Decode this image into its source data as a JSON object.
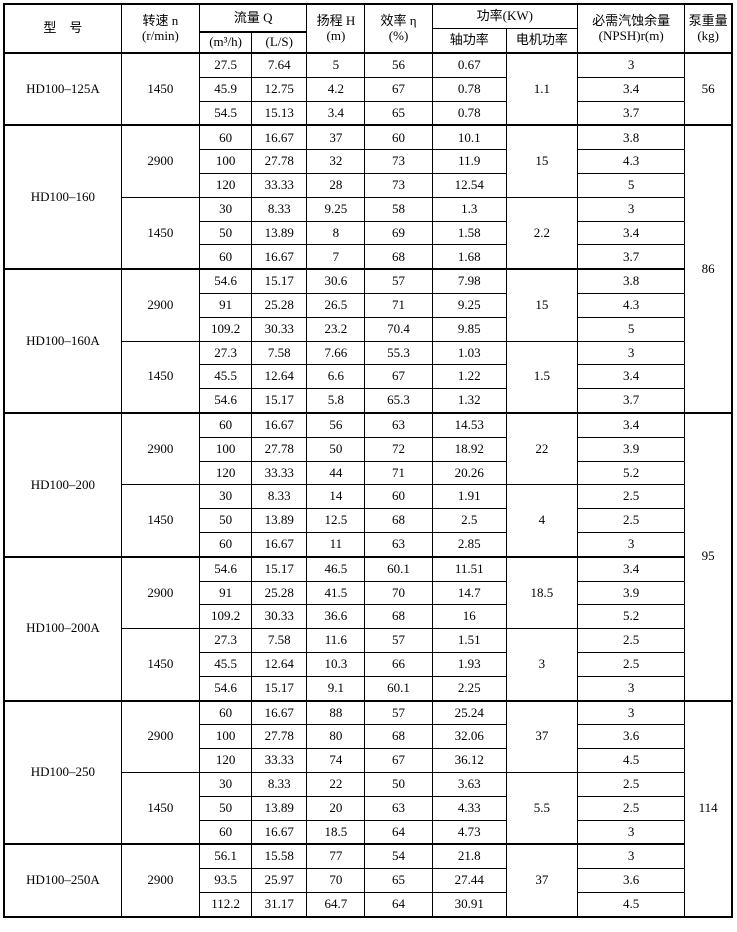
{
  "table": {
    "columns": {
      "model": "型　号",
      "speed_l1": "转速 n",
      "speed_l2": "(r/min)",
      "flow": "流量 Q",
      "flow_m3h": "(m³/h)",
      "flow_ls": "(L/S)",
      "head_l1": "扬程 H",
      "head_l2": "(m)",
      "eff_l1": "效率 η",
      "eff_l2": "(%)",
      "power": "功率(KW)",
      "shaft": "轴功率",
      "motor": "电机功率",
      "npsh_l1": "必需汽蚀余量",
      "npsh_l2": "(NPSH)r(m)",
      "weight_l1": "泵重量",
      "weight_l2": "(kg)"
    },
    "groups": [
      {
        "model": "HD100–125A",
        "blocks": [
          {
            "speed": "1450",
            "motor_power": "1.1",
            "rows": [
              [
                "27.5",
                "7.64",
                "5",
                "56",
                "0.67",
                "3"
              ],
              [
                "45.9",
                "12.75",
                "4.2",
                "67",
                "0.78",
                "3.4"
              ],
              [
                "54.5",
                "15.13",
                "3.4",
                "65",
                "0.78",
                "3.7"
              ]
            ]
          }
        ]
      },
      {
        "model": "HD100–160",
        "blocks": [
          {
            "speed": "2900",
            "motor_power": "15",
            "rows": [
              [
                "60",
                "16.67",
                "37",
                "60",
                "10.1",
                "3.8"
              ],
              [
                "100",
                "27.78",
                "32",
                "73",
                "11.9",
                "4.3"
              ],
              [
                "120",
                "33.33",
                "28",
                "73",
                "12.54",
                "5"
              ]
            ]
          },
          {
            "speed": "1450",
            "motor_power": "2.2",
            "rows": [
              [
                "30",
                "8.33",
                "9.25",
                "58",
                "1.3",
                "3"
              ],
              [
                "50",
                "13.89",
                "8",
                "69",
                "1.58",
                "3.4"
              ],
              [
                "60",
                "16.67",
                "7",
                "68",
                "1.68",
                "3.7"
              ]
            ]
          }
        ]
      },
      {
        "model": "HD100–160A",
        "blocks": [
          {
            "speed": "2900",
            "motor_power": "15",
            "rows": [
              [
                "54.6",
                "15.17",
                "30.6",
                "57",
                "7.98",
                "3.8"
              ],
              [
                "91",
                "25.28",
                "26.5",
                "71",
                "9.25",
                "4.3"
              ],
              [
                "109.2",
                "30.33",
                "23.2",
                "70.4",
                "9.85",
                "5"
              ]
            ]
          },
          {
            "speed": "1450",
            "motor_power": "1.5",
            "rows": [
              [
                "27.3",
                "7.58",
                "7.66",
                "55.3",
                "1.03",
                "3"
              ],
              [
                "45.5",
                "12.64",
                "6.6",
                "67",
                "1.22",
                "3.4"
              ],
              [
                "54.6",
                "15.17",
                "5.8",
                "65.3",
                "1.32",
                "3.7"
              ]
            ]
          }
        ]
      },
      {
        "model": "HD100–200",
        "blocks": [
          {
            "speed": "2900",
            "motor_power": "22",
            "rows": [
              [
                "60",
                "16.67",
                "56",
                "63",
                "14.53",
                "3.4"
              ],
              [
                "100",
                "27.78",
                "50",
                "72",
                "18.92",
                "3.9"
              ],
              [
                "120",
                "33.33",
                "44",
                "71",
                "20.26",
                "5.2"
              ]
            ]
          },
          {
            "speed": "1450",
            "motor_power": "4",
            "rows": [
              [
                "30",
                "8.33",
                "14",
                "60",
                "1.91",
                "2.5"
              ],
              [
                "50",
                "13.89",
                "12.5",
                "68",
                "2.5",
                "2.5"
              ],
              [
                "60",
                "16.67",
                "11",
                "63",
                "2.85",
                "3"
              ]
            ]
          }
        ]
      },
      {
        "model": "HD100–200A",
        "blocks": [
          {
            "speed": "2900",
            "motor_power": "18.5",
            "rows": [
              [
                "54.6",
                "15.17",
                "46.5",
                "60.1",
                "11.51",
                "3.4"
              ],
              [
                "91",
                "25.28",
                "41.5",
                "70",
                "14.7",
                "3.9"
              ],
              [
                "109.2",
                "30.33",
                "36.6",
                "68",
                "16",
                "5.2"
              ]
            ]
          },
          {
            "speed": "1450",
            "motor_power": "3",
            "rows": [
              [
                "27.3",
                "7.58",
                "11.6",
                "57",
                "1.51",
                "2.5"
              ],
              [
                "45.5",
                "12.64",
                "10.3",
                "66",
                "1.93",
                "2.5"
              ],
              [
                "54.6",
                "15.17",
                "9.1",
                "60.1",
                "2.25",
                "3"
              ]
            ]
          }
        ]
      },
      {
        "model": "HD100–250",
        "blocks": [
          {
            "speed": "2900",
            "motor_power": "37",
            "rows": [
              [
                "60",
                "16.67",
                "88",
                "57",
                "25.24",
                "3"
              ],
              [
                "100",
                "27.78",
                "80",
                "68",
                "32.06",
                "3.6"
              ],
              [
                "120",
                "33.33",
                "74",
                "67",
                "36.12",
                "4.5"
              ]
            ]
          },
          {
            "speed": "1450",
            "motor_power": "5.5",
            "rows": [
              [
                "30",
                "8.33",
                "22",
                "50",
                "3.63",
                "2.5"
              ],
              [
                "50",
                "13.89",
                "20",
                "63",
                "4.33",
                "2.5"
              ],
              [
                "60",
                "16.67",
                "18.5",
                "64",
                "4.73",
                "3"
              ]
            ]
          }
        ]
      },
      {
        "model": "HD100–250A",
        "blocks": [
          {
            "speed": "2900",
            "motor_power": "37",
            "rows": [
              [
                "56.1",
                "15.58",
                "77",
                "54",
                "21.8",
                "3"
              ],
              [
                "93.5",
                "25.97",
                "70",
                "65",
                "27.44",
                "3.6"
              ],
              [
                "112.2",
                "31.17",
                "64.7",
                "64",
                "30.91",
                "4.5"
              ]
            ]
          }
        ]
      }
    ],
    "weights": [
      {
        "value": "56",
        "rowspan": 3
      },
      {
        "value": "86",
        "rowspan": 12
      },
      {
        "value": "95",
        "rowspan": 12
      },
      {
        "value": "114",
        "rowspan": 9
      }
    ]
  }
}
